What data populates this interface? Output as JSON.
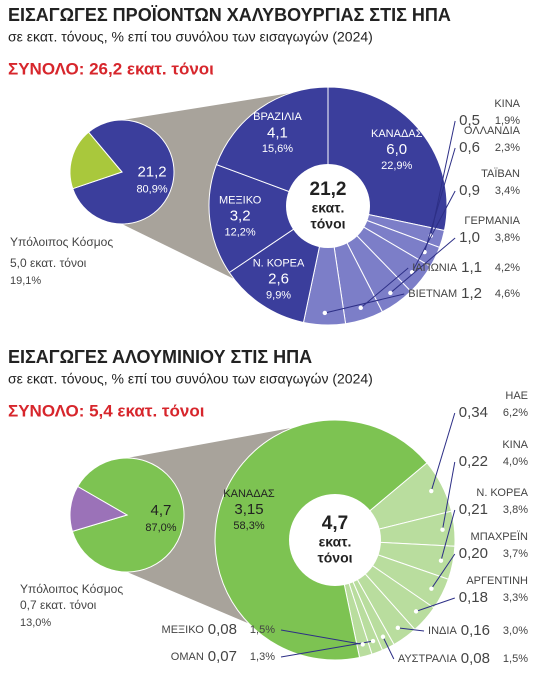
{
  "chart_data": [
    {
      "type": "pie-of-pie",
      "title": "ΕΙΣΑΓΩΓΕΣ ΠΡΟΪΟΝΤΩΝ ΧΑΛΥΒΟΥΡΓΙΑΣ ΣΤΙΣ ΗΠΑ",
      "subtitle": "σε εκατ. τόνους, % επί του συνόλου των εισαγωγών (2024)",
      "total_label": "ΣΥΝΟΛΟ: 26,2 εκατ. τόνοι",
      "center_unit_lines": [
        "εκατ.",
        "τόνοι"
      ],
      "summary": {
        "categories": [
          null,
          "Υπόλοιπος Κόσμος"
        ],
        "values": [
          21.2,
          5.0
        ],
        "value_labels": [
          "21,2",
          "5,0 εκατ. τόνοι"
        ],
        "percents": [
          80.9,
          19.1
        ],
        "percent_labels": [
          "80,9%",
          "19,1%"
        ],
        "colors": [
          "#3b3e9c",
          "#a9c83c"
        ]
      },
      "breakdown": {
        "categories": [
          "ΚΑΝΑΔΑΣ",
          "ΚΙΝΑ",
          "ΟΛΛΑΝΔΙΑ",
          "ΤΑΪΒΑΝ",
          "ΓΕΡΜΑΝΙΑ",
          "ΙΑΠΩΝΙΑ",
          "ΒΙΕΤΝΑΜ",
          "Ν. ΚΟΡΕΑ",
          "ΜΕΞΙΚΟ",
          "ΒΡΑΖΙΛΙΑ"
        ],
        "values": [
          6.0,
          0.5,
          0.6,
          0.9,
          1.0,
          1.1,
          1.2,
          2.6,
          3.2,
          4.1
        ],
        "value_labels": [
          "6,0",
          "0,5",
          "0,6",
          "0,9",
          "1,0",
          "1,1",
          "1,2",
          "2,6",
          "3,2",
          "4,1"
        ],
        "percents": [
          22.9,
          1.9,
          2.3,
          3.4,
          3.8,
          4.2,
          4.6,
          9.9,
          12.2,
          15.6
        ],
        "percent_labels": [
          "22,9%",
          "1,9%",
          "2,3%",
          "3,4%",
          "3,8%",
          "4,2%",
          "4,6%",
          "9,9%",
          "12,2%",
          "15,6%"
        ],
        "colors": [
          "#3b3e9c",
          "#7c7ec8",
          "#7c7ec8",
          "#7c7ec8",
          "#7c7ec8",
          "#7c7ec8",
          "#7c7ec8",
          "#3b3e9c",
          "#3b3e9c",
          "#3b3e9c"
        ]
      }
    },
    {
      "type": "pie-of-pie",
      "title": "ΕΙΣΑΓΩΓΕΣ ΑΛΟΥΜΙΝΙΟΥ ΣΤΙΣ ΗΠΑ",
      "subtitle": "σε εκατ. τόνους, % επί του συνόλου των εισαγωγών (2024)",
      "total_label": "ΣΥΝΟΛΟ: 5,4 εκατ. τόνοι",
      "center_unit_lines": [
        "εκατ.",
        "τόνοι"
      ],
      "summary": {
        "categories": [
          null,
          "Υπόλοιπος Κόσμος"
        ],
        "values": [
          4.7,
          0.7
        ],
        "value_labels": [
          "4,7",
          "0,7 εκατ. τόνοι"
        ],
        "percents": [
          87.0,
          13.0
        ],
        "percent_labels": [
          "87,0%",
          "13,0%"
        ],
        "colors": [
          "#7dc352",
          "#9b72b8"
        ]
      },
      "breakdown": {
        "categories": [
          "ΗΑΕ",
          "ΚΙΝΑ",
          "Ν. ΚΟΡΕΑ",
          "ΜΠΑΧΡΕΪΝ",
          "ΑΡΓΕΝΤΙΝΗ",
          "ΙΝΔΙΑ",
          "ΑΥΣΤΡΑΛΙΑ",
          "ΟΜΑΝ",
          "ΜΕΞΙΚΟ",
          "ΚΑΝΑΔΑΣ"
        ],
        "values": [
          0.34,
          0.22,
          0.21,
          0.2,
          0.18,
          0.16,
          0.08,
          0.07,
          0.08,
          3.15
        ],
        "value_labels": [
          "0,34",
          "0,22",
          "0,21",
          "0,20",
          "0,18",
          "0,16",
          "0,08",
          "0,07",
          "0,08",
          "3,15"
        ],
        "percents": [
          6.2,
          4.0,
          3.8,
          3.7,
          3.3,
          3.0,
          1.5,
          1.3,
          1.5,
          58.3
        ],
        "percent_labels": [
          "6,2%",
          "4,0%",
          "3,8%",
          "3,7%",
          "3,3%",
          "3,0%",
          "1,5%",
          "1,3%",
          "1,5%",
          "58,3%"
        ],
        "colors": [
          "#b9dd9e",
          "#b9dd9e",
          "#b9dd9e",
          "#b9dd9e",
          "#b9dd9e",
          "#b9dd9e",
          "#b9dd9e",
          "#b9dd9e",
          "#b9dd9e",
          "#7dc352"
        ]
      }
    }
  ]
}
